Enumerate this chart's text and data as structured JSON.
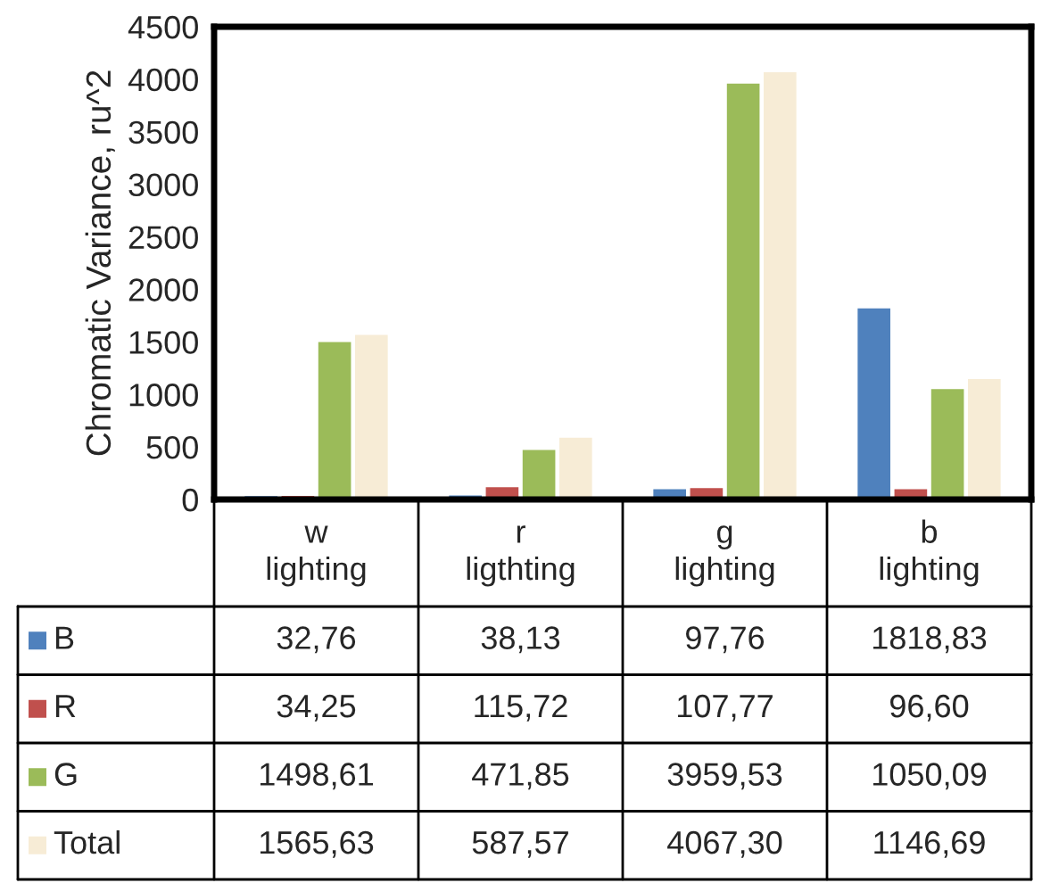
{
  "chart_data": {
    "type": "bar",
    "ylabel": "Chromatic Variance, ru^2",
    "categories": [
      "w\nlighting",
      "r\nligthting",
      "g\nlighting",
      "b\nlighting"
    ],
    "series": [
      {
        "name": "B",
        "color": "#4f81bd",
        "values": [
          32.76,
          38.13,
          97.76,
          1818.83
        ],
        "value_labels": [
          "32,76",
          "38,13",
          "97,76",
          "1818,83"
        ]
      },
      {
        "name": "R",
        "color": "#c0504d",
        "values": [
          34.25,
          115.72,
          107.77,
          96.6
        ],
        "value_labels": [
          "34,25",
          "115,72",
          "107,77",
          "96,60"
        ]
      },
      {
        "name": "G",
        "color": "#9bbb59",
        "values": [
          1498.61,
          471.85,
          3959.53,
          1050.09
        ],
        "value_labels": [
          "1498,61",
          "471,85",
          "3959,53",
          "1050,09"
        ]
      },
      {
        "name": "Total",
        "color": "#f7ecd6",
        "values": [
          1565.63,
          587.57,
          4067.3,
          1146.69
        ],
        "value_labels": [
          "1565,63",
          "587,57",
          "4067,30",
          "1146,69"
        ]
      }
    ],
    "ylim": [
      0,
      4500
    ],
    "yticks": [
      0,
      500,
      1000,
      1500,
      2000,
      2500,
      3000,
      3500,
      4000,
      4500
    ],
    "grid": false,
    "legend": "bottom"
  }
}
